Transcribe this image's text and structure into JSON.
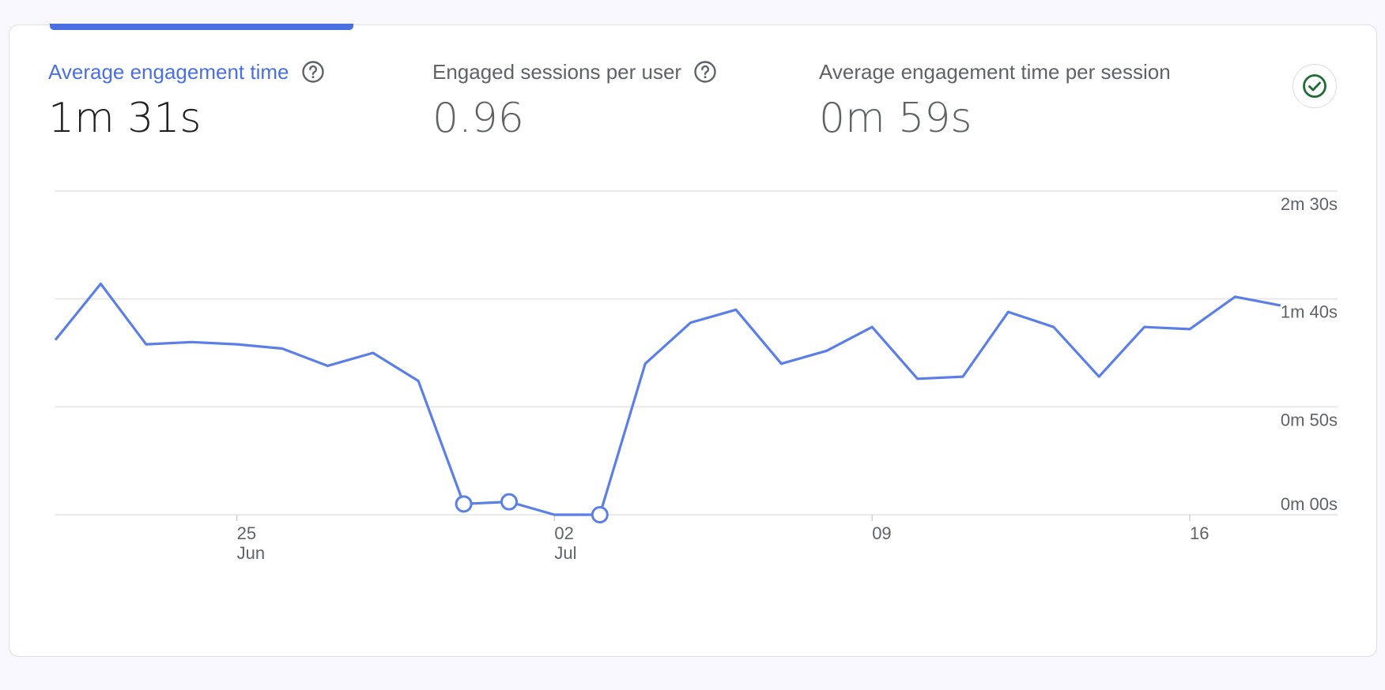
{
  "metrics": [
    {
      "label": "Average engagement time",
      "value": "1m 31s",
      "active": true
    },
    {
      "label": "Engaged sessions per user",
      "value": "0.96",
      "active": false
    },
    {
      "label": "Average engagement time per session",
      "value": "0m 59s",
      "active": false
    }
  ],
  "colors": {
    "accent": "#4a6fe3",
    "line": "#5b7fe6",
    "check": "#1e6b35"
  },
  "icons": {
    "help": "help-circle-icon",
    "check": "check-circle-icon"
  },
  "chart_data": {
    "type": "line",
    "title": "",
    "xlabel": "",
    "ylabel": "",
    "y_unit": "seconds",
    "ylim": [
      0,
      150
    ],
    "y_ticks": [
      {
        "value": 0,
        "label": "0m 00s"
      },
      {
        "value": 50,
        "label": "0m 50s"
      },
      {
        "value": 100,
        "label": "1m 40s"
      },
      {
        "value": 150,
        "label": "2m 30s"
      }
    ],
    "x_ticks": [
      {
        "date": "2023-06-25",
        "day": "25",
        "month": "Jun"
      },
      {
        "date": "2023-07-02",
        "day": "02",
        "month": "Jul"
      },
      {
        "date": "2023-07-09",
        "day": "09",
        "month": ""
      },
      {
        "date": "2023-07-16",
        "day": "16",
        "month": ""
      }
    ],
    "grid": true,
    "series": [
      {
        "x": [
          "2023-06-21",
          "2023-06-22",
          "2023-06-23",
          "2023-06-24",
          "2023-06-25",
          "2023-06-26",
          "2023-06-27",
          "2023-06-28",
          "2023-06-29",
          "2023-06-30",
          "2023-07-01",
          "2023-07-02",
          "2023-07-03",
          "2023-07-04",
          "2023-07-05",
          "2023-07-06",
          "2023-07-07",
          "2023-07-08",
          "2023-07-09",
          "2023-07-10",
          "2023-07-11",
          "2023-07-12",
          "2023-07-13",
          "2023-07-14",
          "2023-07-15",
          "2023-07-16",
          "2023-07-17",
          "2023-07-18"
        ],
        "values": [
          81,
          107,
          79,
          80,
          79,
          77,
          69,
          75,
          62,
          5,
          6,
          0,
          0,
          70,
          89,
          95,
          70,
          76,
          87,
          63,
          64,
          94,
          87,
          64,
          87,
          86,
          101,
          97
        ],
        "markers": [
          9,
          10,
          12
        ]
      }
    ]
  }
}
